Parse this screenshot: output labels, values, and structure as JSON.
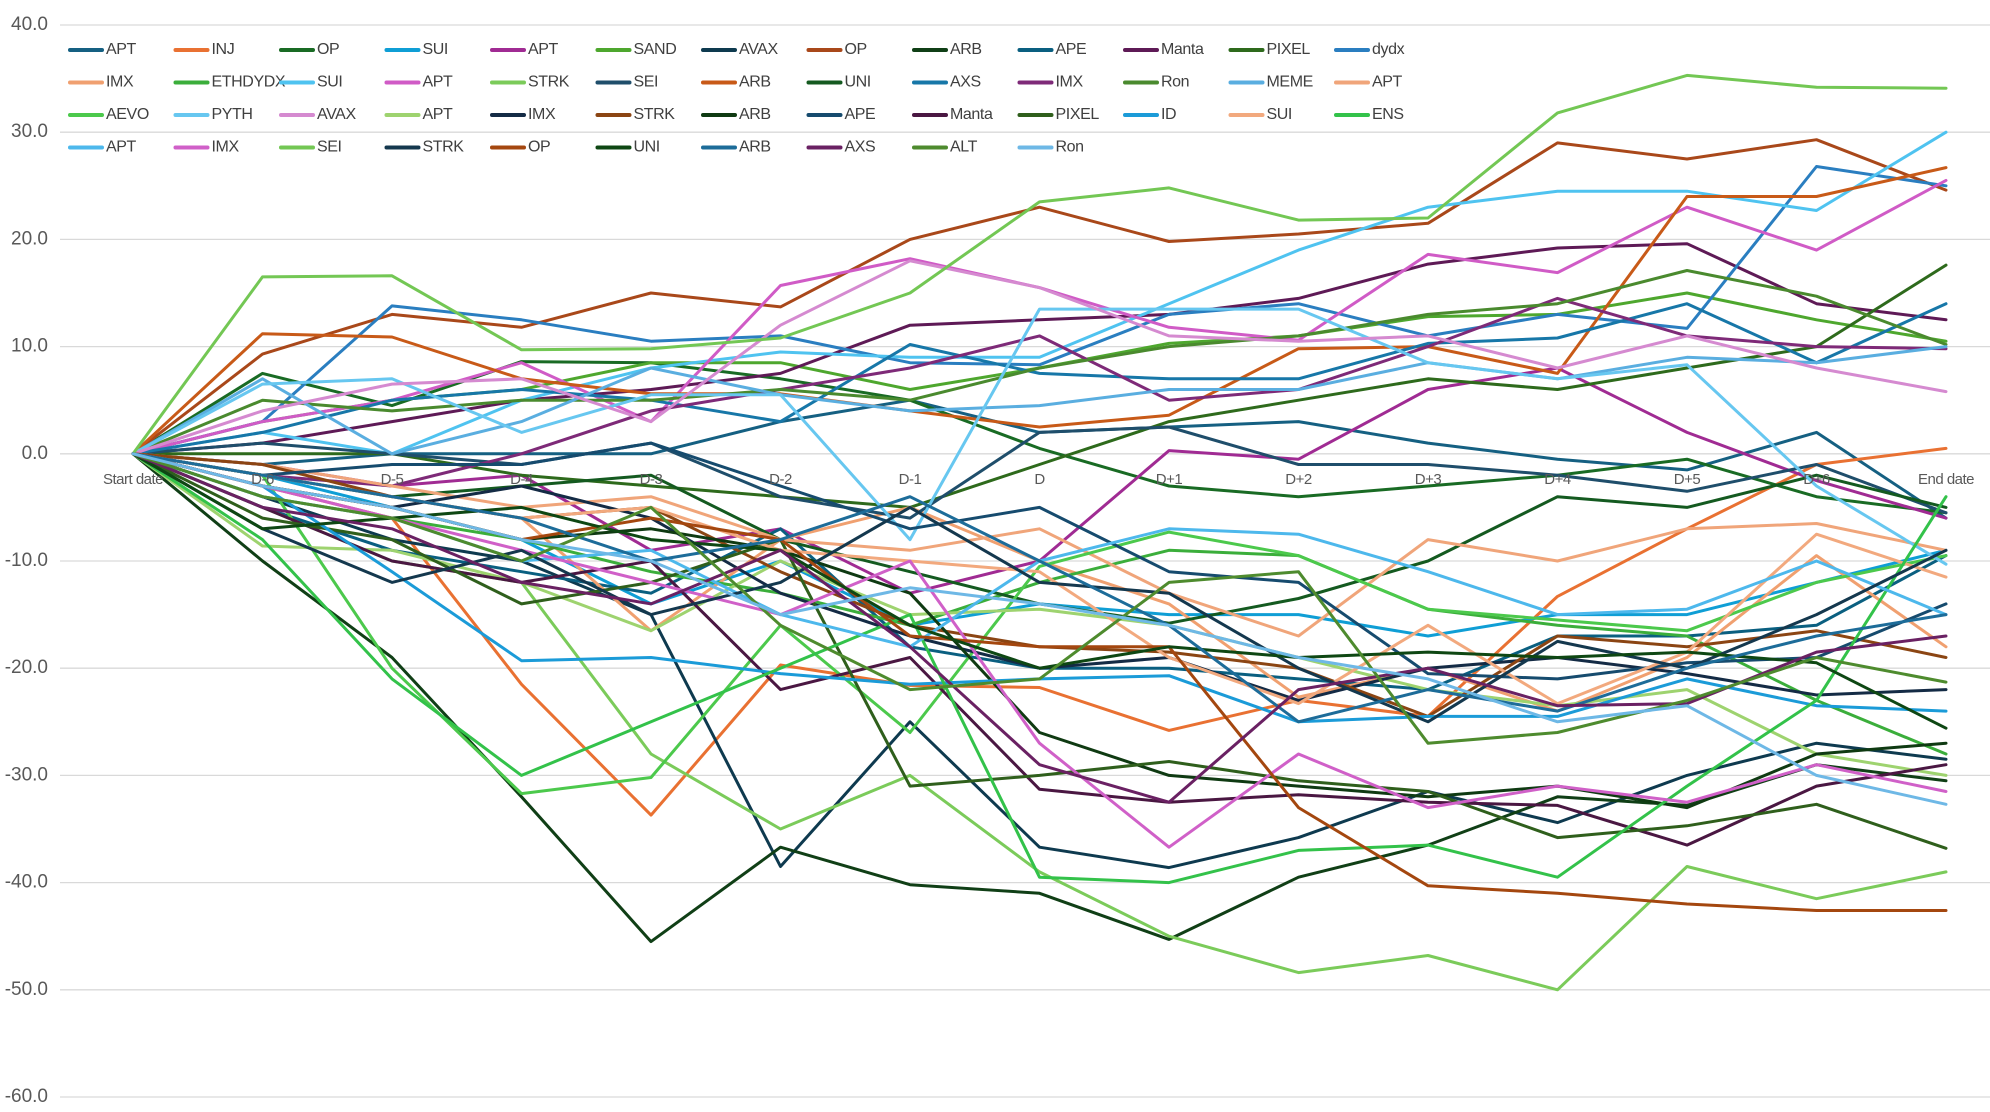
{
  "chart_data": {
    "type": "line",
    "categories": [
      "Start date",
      "D-6",
      "D-5",
      "D-4",
      "D-3",
      "D-2",
      "D-1",
      "D",
      "D+1",
      "D+2",
      "D+3",
      "D+4",
      "D+5",
      "D+6",
      "End date"
    ],
    "ylim": [
      -60,
      40
    ],
    "yticks": [
      {
        "value": 40,
        "label": "40.0"
      },
      {
        "value": 30,
        "label": "30.0"
      },
      {
        "value": 20,
        "label": "20.0"
      },
      {
        "value": 10,
        "label": "10.0"
      },
      {
        "value": 0,
        "label": "0.0"
      },
      {
        "value": -10,
        "label": "-10.0"
      },
      {
        "value": -20,
        "label": "-20.0"
      },
      {
        "value": -30,
        "label": "-30.0"
      },
      {
        "value": -40,
        "label": "-40.0"
      },
      {
        "value": -50,
        "label": "-50.0"
      },
      {
        "value": -60,
        "label": "-60.0"
      }
    ],
    "grid": true,
    "legend": "top-left",
    "series": [
      {
        "name": "APT",
        "color": "#156082",
        "values": [
          0,
          -1,
          0,
          0,
          0,
          3,
          5,
          2,
          2.5,
          3,
          1,
          -0.5,
          -1.5,
          2,
          -6
        ]
      },
      {
        "name": "INJ",
        "color": "#E97132",
        "values": [
          0,
          -3,
          -6,
          -21.5,
          -33.7,
          -19.7,
          -21.6,
          -21.8,
          -25.8,
          -23,
          -24.5,
          -13.3,
          -7,
          -1,
          0.5
        ]
      },
      {
        "name": "OP",
        "color": "#196B24",
        "values": [
          0,
          7.5,
          4.5,
          8.6,
          8.5,
          7,
          5,
          0.5,
          -3,
          -4,
          -3,
          -2,
          -0.5,
          -4,
          -5.5
        ]
      },
      {
        "name": "SUI",
        "color": "#0F9ED5",
        "values": [
          0,
          -2,
          -5,
          -8,
          -14,
          -10,
          -16,
          -14,
          -15,
          -15,
          -17,
          -15,
          -15,
          -12,
          -9
        ]
      },
      {
        "name": "APT",
        "color": "#A02B93",
        "values": [
          0,
          -1,
          -3,
          -2,
          -9,
          -7,
          -13,
          -10,
          0.3,
          -0.5,
          6,
          8,
          2,
          -2.5,
          -6
        ]
      },
      {
        "name": "SAND",
        "color": "#4EA72E",
        "values": [
          0,
          3,
          5,
          6,
          8.5,
          8.5,
          6,
          8,
          10.3,
          11,
          12.8,
          13,
          15,
          12.5,
          10.5
        ]
      },
      {
        "name": "AVAX",
        "color": "#0E3A4F",
        "values": [
          0,
          -4,
          -8,
          -10,
          -15,
          -38.5,
          -25,
          -36.7,
          -38.6,
          -35.8,
          -31.5,
          -34.4,
          -30,
          -27,
          -28.5
        ]
      },
      {
        "name": "OP",
        "color": "#A9481A",
        "values": [
          0,
          9.3,
          13,
          11.8,
          15,
          13.7,
          20,
          23,
          19.8,
          20.5,
          21.5,
          29,
          27.5,
          29.3,
          24.6
        ]
      },
      {
        "name": "ARB",
        "color": "#103F16",
        "values": [
          0,
          -10,
          -19,
          -32,
          -45.5,
          -36.7,
          -40.2,
          -41,
          -45.3,
          -39.5,
          -36.5,
          -32,
          -32.8,
          -29,
          -30.5
        ]
      },
      {
        "name": "APE",
        "color": "#0A5F80",
        "values": [
          0,
          -5,
          -9,
          -11,
          -13,
          -7,
          -18,
          -20,
          -20,
          -21,
          -22,
          -17,
          -17,
          -16,
          -9.5
        ]
      },
      {
        "name": "Manta",
        "color": "#5E1A56",
        "values": [
          0,
          1,
          3,
          5,
          6,
          7.5,
          12,
          12.5,
          13,
          14.5,
          17.7,
          19.2,
          19.6,
          14,
          12.5
        ]
      },
      {
        "name": "PIXEL",
        "color": "#2E6A1C",
        "values": [
          0,
          0,
          0,
          -2,
          -3,
          -4,
          -5,
          -1,
          3,
          5,
          7,
          6,
          8,
          10,
          17.6
        ]
      },
      {
        "name": "dydx",
        "color": "#2A7EC0",
        "values": [
          0,
          3,
          13.8,
          12.5,
          10.5,
          11,
          8.5,
          8.3,
          13,
          14,
          11,
          13,
          11.7,
          26.8,
          25
        ]
      },
      {
        "name": "IMX",
        "color": "#F0A070",
        "values": [
          0,
          -2,
          -4,
          -6,
          -16.5,
          -8,
          -5,
          -10,
          -14,
          -22.7,
          -20,
          -24,
          -19,
          -9.5,
          -18
        ]
      },
      {
        "name": "ETHDYDX",
        "color": "#3BAE3B",
        "values": [
          0,
          -4,
          -6,
          -8,
          -11,
          -13,
          -16,
          -12,
          -9,
          -9.5,
          -14.5,
          -16,
          -17,
          -23,
          -28
        ]
      },
      {
        "name": "SUI",
        "color": "#4FC3F0",
        "values": [
          0,
          2,
          0,
          5,
          8,
          9.5,
          9,
          9,
          14,
          19,
          23,
          24.5,
          24.5,
          22.7,
          30
        ]
      },
      {
        "name": "APT",
        "color": "#D05BC6",
        "values": [
          0,
          3,
          5,
          8.5,
          3,
          15.7,
          18.2,
          15.5,
          11.8,
          10.6,
          18.6,
          16.9,
          23,
          19,
          25.5
        ]
      },
      {
        "name": "STRK",
        "color": "#7BCB5A",
        "values": [
          0,
          -5,
          -10,
          -12,
          -28,
          -35,
          -30,
          -39,
          -45,
          -48.4,
          -46.8,
          -50,
          -38.5,
          -41.5,
          -39
        ]
      },
      {
        "name": "SEI",
        "color": "#1F4E6B",
        "values": [
          0,
          1,
          0,
          -1,
          1,
          -4,
          -6,
          2,
          2.5,
          -1,
          -1,
          -2,
          -3.5,
          -1,
          -5.5
        ]
      },
      {
        "name": "ARB",
        "color": "#C85A18",
        "values": [
          0,
          11.2,
          10.9,
          7,
          5.6,
          5.6,
          4,
          2.5,
          3.6,
          9.8,
          10,
          7.5,
          24,
          24,
          26.7
        ]
      },
      {
        "name": "UNI",
        "color": "#145A20",
        "values": [
          0,
          -2,
          -4,
          -3,
          -2,
          -8,
          -11,
          -14,
          -15.8,
          -13.5,
          -10,
          -4,
          -5,
          -2,
          -5
        ]
      },
      {
        "name": "AXS",
        "color": "#1777A8",
        "values": [
          0,
          2,
          5,
          6,
          5,
          3,
          10.2,
          7.5,
          7,
          7,
          10.3,
          10.8,
          14,
          8.5,
          14
        ]
      },
      {
        "name": "IMX",
        "color": "#7E2A78",
        "values": [
          0,
          -2,
          -3,
          0,
          4,
          6,
          8,
          11,
          5,
          6,
          10,
          14.5,
          11,
          10,
          9.8
        ]
      },
      {
        "name": "Ron",
        "color": "#4A8A2E",
        "values": [
          0,
          5,
          4,
          5,
          5,
          6,
          5,
          8,
          10,
          11,
          13,
          14,
          17.1,
          14.7,
          10.2
        ]
      },
      {
        "name": "MEME",
        "color": "#5AAEE0",
        "values": [
          0,
          7,
          0,
          3,
          8,
          5.5,
          4,
          4.5,
          6,
          6,
          8.5,
          7,
          9,
          8.5,
          10
        ]
      },
      {
        "name": "APT",
        "color": "#F0A57A",
        "values": [
          0,
          -1,
          -3,
          -5,
          -4,
          -8,
          -9,
          -7,
          -13,
          -17,
          -8,
          -10,
          -7,
          -6.5,
          -9
        ]
      },
      {
        "name": "AEVO",
        "color": "#4CC94C",
        "values": [
          0,
          -2,
          -20,
          -31.7,
          -30.2,
          -16,
          -26,
          -10.5,
          -7.3,
          -9.5,
          -14.5,
          -15.5,
          -16.5,
          -12,
          -9.5
        ]
      },
      {
        "name": "PYTH",
        "color": "#67C7F0",
        "values": [
          0,
          6.5,
          7,
          2,
          5.5,
          5.5,
          -8,
          13.5,
          13.5,
          13.5,
          8.5,
          7,
          8.3,
          -3,
          -10.3
        ]
      },
      {
        "name": "AVAX",
        "color": "#D58AD0",
        "values": [
          0,
          4,
          6.5,
          7,
          3,
          12,
          18,
          15.5,
          11,
          10.5,
          11,
          8,
          11,
          8,
          5.8
        ]
      },
      {
        "name": "APT",
        "color": "#9ED36F",
        "values": [
          0,
          -8.6,
          -9,
          -12,
          -16.5,
          -10,
          -15,
          -14.5,
          -16,
          -19,
          -22,
          -23.5,
          -22,
          -28,
          -30
        ]
      },
      {
        "name": "IMX",
        "color": "#142B45",
        "values": [
          0,
          -3,
          -5,
          -3,
          -6,
          -13,
          -17,
          -20,
          -19,
          -23,
          -20,
          -19,
          -20.5,
          -22.5,
          -22
        ]
      },
      {
        "name": "STRK",
        "color": "#8B4513",
        "values": [
          0,
          -1,
          -4,
          -6,
          -5,
          -11,
          -16,
          -18,
          -18.5,
          -20,
          -24.5,
          -17,
          -18,
          -16.5,
          -19
        ]
      },
      {
        "name": "ARB",
        "color": "#0F3A12",
        "values": [
          0,
          -3,
          -5,
          -8,
          -7,
          -9,
          -13,
          -26,
          -30,
          -31,
          -32,
          -31,
          -33,
          -28,
          -27
        ]
      },
      {
        "name": "APE",
        "color": "#164B6E",
        "values": [
          0,
          -2,
          -1,
          -1,
          1,
          -3,
          -7,
          -5,
          -11,
          -12,
          -20.5,
          -21,
          -19.5,
          -19,
          -14
        ]
      },
      {
        "name": "Manta",
        "color": "#4A1742",
        "values": [
          0,
          -5,
          -10,
          -12,
          -10,
          -22,
          -19,
          -31.3,
          -32.5,
          -31.8,
          -32.5,
          -32.8,
          -36.5,
          -31,
          -29
        ]
      },
      {
        "name": "PIXEL",
        "color": "#2F5F1C",
        "values": [
          0,
          -6,
          -8,
          -14,
          -12,
          -8,
          -31,
          -30,
          -28.7,
          -30.5,
          -31.5,
          -35.8,
          -34.7,
          -32.7,
          -36.8
        ]
      },
      {
        "name": "ID",
        "color": "#1B9BD8",
        "values": [
          0,
          -3,
          -11,
          -19.3,
          -19,
          -20.5,
          -21.5,
          -21,
          -20.7,
          -25,
          -24.5,
          -24.5,
          -21,
          -23.5,
          -24
        ]
      },
      {
        "name": "SUI",
        "color": "#F2A97E",
        "values": [
          0,
          -2,
          -4,
          -6,
          -5,
          -9,
          -10,
          -11,
          -19,
          -23.3,
          -16,
          -23.3,
          -18.5,
          -7.5,
          -11.5
        ]
      },
      {
        "name": "ENS",
        "color": "#33C24A",
        "values": [
          0,
          -8,
          -21,
          -30,
          -25,
          -20,
          -15,
          -39.5,
          -40,
          -37,
          -36.5,
          -39.5,
          -31,
          -23,
          -4
        ]
      },
      {
        "name": "APT",
        "color": "#4DB8EC",
        "values": [
          0,
          -4,
          -6,
          -10,
          -9,
          -15,
          -18,
          -10,
          -7,
          -7.5,
          -11,
          -15,
          -14.5,
          -10,
          -15
        ]
      },
      {
        "name": "IMX",
        "color": "#D060C8",
        "values": [
          0,
          -3,
          -6,
          -9,
          -12,
          -15,
          -10,
          -27,
          -36.7,
          -28,
          -33,
          -31,
          -32.5,
          -29,
          -31.5
        ]
      },
      {
        "name": "SEI",
        "color": "#73C754",
        "values": [
          0,
          16.5,
          16.6,
          9.7,
          9.8,
          10.8,
          15,
          23.5,
          24.8,
          21.8,
          22,
          31.8,
          35.3,
          34.2,
          34.1
        ]
      },
      {
        "name": "STRK",
        "color": "#14384E",
        "values": [
          0,
          -7,
          -12,
          -9,
          -15,
          -12,
          -5,
          -12,
          -13,
          -20,
          -25,
          -17.5,
          -20,
          -15,
          -9
        ]
      },
      {
        "name": "OP",
        "color": "#A4470F",
        "values": [
          0,
          -3,
          -5,
          -8,
          -6,
          -8,
          -17,
          -18,
          -18,
          -33,
          -40.3,
          -41,
          -42,
          -42.6,
          -42.6
        ]
      },
      {
        "name": "UNI",
        "color": "#0E4713",
        "values": [
          0,
          -7,
          -6,
          -5,
          -8,
          -9,
          -16,
          -20,
          -18,
          -19,
          -18.5,
          -19,
          -18.5,
          -19.5,
          -25.6
        ]
      },
      {
        "name": "ARB",
        "color": "#1D6C99",
        "values": [
          0,
          -2,
          -4,
          -6,
          -10,
          -8,
          -4,
          -10,
          -16,
          -25,
          -22,
          -24,
          -20,
          -17,
          -15
        ]
      },
      {
        "name": "AXS",
        "color": "#6A2163",
        "values": [
          0,
          -5,
          -7,
          -12,
          -14,
          -9,
          -18,
          -29,
          -32.5,
          -22,
          -20,
          -23.5,
          -23.3,
          -18.5,
          -17
        ]
      },
      {
        "name": "ALT",
        "color": "#4E8B2E",
        "values": [
          0,
          -4,
          -6,
          -10,
          -5,
          -16,
          -22,
          -21,
          -12,
          -11,
          -27,
          -26,
          -23,
          -19,
          -21.3
        ]
      },
      {
        "name": "Ron",
        "color": "#6EB8E6",
        "values": [
          0,
          -3,
          -5,
          -8,
          -10,
          -15,
          -12.5,
          -14,
          -16,
          -19,
          -21,
          -25,
          -23.5,
          -30,
          -32.7
        ]
      }
    ]
  }
}
